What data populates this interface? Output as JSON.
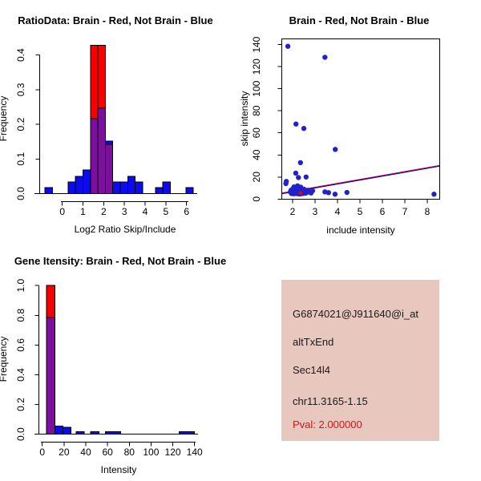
{
  "colors": {
    "red": "#f80000",
    "blue": "#0b0bee",
    "purple": "#7d0f9f",
    "point_blue": "#2222cc",
    "line_blue": "#0000cc",
    "line_red": "#cc0033",
    "panel_pink": "#e8c7bf",
    "pval_red": "#e01010",
    "axis_black": "#000000"
  },
  "chart_data": [
    {
      "type": "bar",
      "title": "RatioData: Brain - Red, Not Brain - Blue",
      "xlabel": "Log2 Ratio Skip/Include",
      "ylabel": "Frequency",
      "xticks": [
        0,
        1,
        2,
        3,
        4,
        5,
        6
      ],
      "yticks": [
        "0.0",
        "0.1",
        "0.2",
        "0.3",
        "0.4"
      ],
      "xlim": [
        -1.1,
        6.5
      ],
      "ylim": [
        0,
        0.43
      ],
      "legend_note": "blue = Not Brain, red = Brain, purple = overlap",
      "bars": [
        {
          "x0": -0.84,
          "x1": -0.48,
          "h": 0.017,
          "color": "blue"
        },
        {
          "x0": 0.28,
          "x1": 0.64,
          "h": 0.033,
          "color": "blue"
        },
        {
          "x0": 0.64,
          "x1": 1.0,
          "h": 0.05,
          "color": "blue"
        },
        {
          "x0": 1.0,
          "x1": 1.36,
          "h": 0.068,
          "color": "blue"
        },
        {
          "x0": 1.36,
          "x1": 1.72,
          "h": 0.428,
          "color": "red",
          "overlay_h": 0.216,
          "overlay_color": "purple"
        },
        {
          "x0": 1.72,
          "x1": 2.08,
          "h": 0.428,
          "color": "red",
          "overlay_h": 0.247,
          "overlay_color": "purple"
        },
        {
          "x0": 2.08,
          "x1": 2.44,
          "h": 0.152,
          "color": "blue",
          "overlay_h": 0.142,
          "overlay_color": "purple"
        },
        {
          "x0": 2.44,
          "x1": 2.8,
          "h": 0.033,
          "color": "blue"
        },
        {
          "x0": 2.8,
          "x1": 3.16,
          "h": 0.033,
          "color": "blue"
        },
        {
          "x0": 3.16,
          "x1": 3.52,
          "h": 0.05,
          "color": "blue"
        },
        {
          "x0": 3.52,
          "x1": 3.88,
          "h": 0.033,
          "color": "blue"
        },
        {
          "x0": 4.5,
          "x1": 4.86,
          "h": 0.017,
          "color": "blue"
        },
        {
          "x0": 4.86,
          "x1": 5.22,
          "h": 0.033,
          "color": "blue"
        },
        {
          "x0": 5.97,
          "x1": 6.33,
          "h": 0.017,
          "color": "blue"
        }
      ]
    },
    {
      "type": "scatter",
      "title": "Brain - Red, Not Brain - Blue",
      "xlabel": "include intensity",
      "ylabel": "skip intensity",
      "xticks": [
        2,
        3,
        4,
        5,
        6,
        7,
        8
      ],
      "yticks": [
        0,
        20,
        40,
        60,
        80,
        100,
        120,
        140
      ],
      "xlim": [
        1.52,
        8.55
      ],
      "ylim": [
        0,
        145
      ],
      "points": [
        [
          1.79,
          138.5
        ],
        [
          3.44,
          128.5
        ],
        [
          2.15,
          68
        ],
        [
          2.5,
          64
        ],
        [
          3.9,
          45
        ],
        [
          2.35,
          33
        ],
        [
          2.14,
          23.5
        ],
        [
          2.26,
          19.5
        ],
        [
          2.6,
          20
        ],
        [
          1.72,
          16
        ],
        [
          1.7,
          14
        ],
        [
          1.9,
          6.5
        ],
        [
          1.93,
          8
        ],
        [
          1.96,
          5.5
        ],
        [
          2.0,
          9
        ],
        [
          2.0,
          6
        ],
        [
          2.04,
          7.5
        ],
        [
          2.06,
          11
        ],
        [
          2.08,
          5.2
        ],
        [
          2.1,
          8.5
        ],
        [
          2.12,
          6.3
        ],
        [
          2.15,
          10
        ],
        [
          2.17,
          7
        ],
        [
          2.2,
          5.5
        ],
        [
          2.22,
          12
        ],
        [
          2.24,
          8
        ],
        [
          2.27,
          6
        ],
        [
          2.3,
          9.5
        ],
        [
          2.32,
          7
        ],
        [
          2.36,
          10.8
        ],
        [
          2.38,
          5.5
        ],
        [
          2.42,
          8
        ],
        [
          2.45,
          6.3
        ],
        [
          2.5,
          9
        ],
        [
          2.55,
          7
        ],
        [
          2.6,
          5.5
        ],
        [
          2.67,
          8
        ],
        [
          2.73,
          6.5
        ],
        [
          2.82,
          5.5
        ],
        [
          2.89,
          7.5
        ],
        [
          1.95,
          5
        ],
        [
          2.05,
          4.8
        ],
        [
          2.15,
          5
        ],
        [
          2.25,
          4.8
        ],
        [
          2.33,
          4.6
        ],
        [
          2.35,
          5.2
        ],
        [
          2.45,
          5
        ],
        [
          2.55,
          5.3
        ],
        [
          3.44,
          6.5
        ],
        [
          3.6,
          5.8
        ],
        [
          3.89,
          4.4
        ],
        [
          4.42,
          6
        ],
        [
          8.3,
          4.4
        ]
      ],
      "red_point": [
        2.35,
        5.5
      ],
      "line": {
        "x1": 1.52,
        "y1": 5.0,
        "x2": 8.55,
        "y2": 30.0
      }
    },
    {
      "type": "bar",
      "title": "Gene Itensity: Brain - Red, Not Brain - Blue",
      "xlabel": "Intensity",
      "ylabel": "Frequency",
      "xticks": [
        0,
        20,
        40,
        60,
        80,
        100,
        120,
        140
      ],
      "yticks": [
        "0.0",
        "0.2",
        "0.4",
        "0.6",
        "0.8",
        "1.0"
      ],
      "xlim": [
        0,
        145
      ],
      "ylim": [
        0,
        1.0
      ],
      "legend_note": "blue = Not Brain, red = Brain, purple = overlap",
      "bars": [
        {
          "x0": 4,
          "x1": 11.5,
          "h": 1.0,
          "color": "red",
          "overlay_h": 0.785,
          "overlay_color": "purple"
        },
        {
          "x0": 11.5,
          "x1": 19,
          "h": 0.056,
          "color": "blue"
        },
        {
          "x0": 19,
          "x1": 26.5,
          "h": 0.047,
          "color": "blue"
        },
        {
          "x0": 31,
          "x1": 38.5,
          "h": 0.018,
          "color": "blue"
        },
        {
          "x0": 44.5,
          "x1": 52,
          "h": 0.018,
          "color": "blue"
        },
        {
          "x0": 58,
          "x1": 72,
          "h": 0.018,
          "color": "blue"
        },
        {
          "x0": 126,
          "x1": 140,
          "h": 0.018,
          "color": "blue"
        }
      ]
    }
  ],
  "info_panel": {
    "probe_id": "G6874021@J911640@i_at",
    "event_type": "altTxEnd",
    "gene": "Sec14l4",
    "location": "chr11.3165-1.15",
    "pval": "Pval: 2.000000"
  }
}
